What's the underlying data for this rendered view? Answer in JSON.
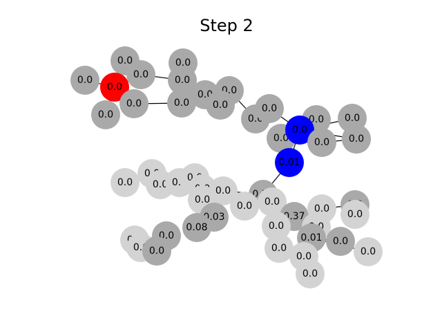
{
  "figure": {
    "title": "Step 2"
  },
  "graph": {
    "colors": {
      "dark": "#a9a9a9",
      "light": "#d3d3d3",
      "red": "#ff0000",
      "blue": "#0000ff"
    },
    "nodes": [
      {
        "id": "n1",
        "label": "0.0",
        "color": "dark"
      },
      {
        "id": "n2",
        "label": "0.0",
        "color": "dark"
      },
      {
        "id": "n3",
        "label": "0.0",
        "color": "red"
      },
      {
        "id": "n4",
        "label": "0.0",
        "color": "dark"
      },
      {
        "id": "n5",
        "label": "0.0",
        "color": "dark"
      },
      {
        "id": "n6",
        "label": "0.0",
        "color": "dark"
      },
      {
        "id": "n7",
        "label": "0.0",
        "color": "dark"
      },
      {
        "id": "n8",
        "label": "0.0",
        "color": "dark"
      },
      {
        "id": "n9",
        "label": "0.0",
        "color": "dark"
      },
      {
        "id": "n10",
        "label": "0.0",
        "color": "dark"
      },
      {
        "id": "n11",
        "label": "0.0",
        "color": "dark"
      },
      {
        "id": "n12",
        "label": "0.0",
        "color": "dark"
      },
      {
        "id": "n13",
        "label": "0.0",
        "color": "dark"
      },
      {
        "id": "n14",
        "label": "0.0",
        "color": "dark"
      },
      {
        "id": "n15",
        "label": "0.0",
        "color": "dark"
      },
      {
        "id": "n16",
        "label": "0.0",
        "color": "dark"
      },
      {
        "id": "n17",
        "label": "0.0",
        "color": "dark"
      },
      {
        "id": "n18",
        "label": "0.0",
        "color": "blue"
      },
      {
        "id": "n19",
        "label": "0.0",
        "color": "dark"
      },
      {
        "id": "n20",
        "label": "0.0",
        "color": "dark"
      },
      {
        "id": "n21",
        "label": "0.0",
        "color": "dark"
      },
      {
        "id": "n22",
        "label": "0.01",
        "color": "blue"
      },
      {
        "id": "n23",
        "label": "0.0",
        "color": "light"
      },
      {
        "id": "n24",
        "label": "0.0",
        "color": "light"
      },
      {
        "id": "n25",
        "label": "0.0",
        "color": "light"
      },
      {
        "id": "n26",
        "label": "0.0",
        "color": "light"
      },
      {
        "id": "n27",
        "label": "0.0",
        "color": "light"
      },
      {
        "id": "n28",
        "label": "0.0",
        "color": "light"
      },
      {
        "id": "n29",
        "label": "0.0",
        "color": "light"
      },
      {
        "id": "n30",
        "label": "0.0",
        "color": "light"
      },
      {
        "id": "n31",
        "label": "0.37",
        "color": "dark"
      },
      {
        "id": "n32",
        "label": "0.0",
        "color": "light"
      },
      {
        "id": "n33",
        "label": "0.0",
        "color": "light"
      },
      {
        "id": "n34",
        "label": "0.37",
        "color": "dark"
      },
      {
        "id": "n35",
        "label": "0.0",
        "color": "light"
      },
      {
        "id": "n36",
        "label": "0.0",
        "color": "light"
      },
      {
        "id": "n37",
        "label": "0.0",
        "color": "light"
      },
      {
        "id": "n38",
        "label": "0.0",
        "color": "light"
      },
      {
        "id": "n39",
        "label": "0.01",
        "color": "dark"
      },
      {
        "id": "n40",
        "label": "0.0",
        "color": "dark"
      },
      {
        "id": "n41",
        "label": "0.0",
        "color": "light"
      },
      {
        "id": "n42",
        "label": "0.0",
        "color": "light"
      },
      {
        "id": "n43",
        "label": "0.0",
        "color": "light"
      },
      {
        "id": "n44",
        "label": "0.0",
        "color": "dark"
      },
      {
        "id": "n45",
        "label": "0.0",
        "color": "light"
      },
      {
        "id": "n46",
        "label": "0.03",
        "color": "dark"
      },
      {
        "id": "n47",
        "label": "0.08",
        "color": "dark"
      },
      {
        "id": "n48",
        "label": "0.0",
        "color": "dark"
      },
      {
        "id": "n49",
        "label": "0.0",
        "color": "light"
      },
      {
        "id": "n50",
        "label": "0.0",
        "color": "light"
      },
      {
        "id": "n51",
        "label": "0.0",
        "color": "dark"
      }
    ],
    "edges": [
      [
        "n3",
        "n1"
      ],
      [
        "n3",
        "n2"
      ],
      [
        "n3",
        "n4"
      ],
      [
        "n3",
        "n5"
      ],
      [
        "n3",
        "n6"
      ],
      [
        "n4",
        "n8"
      ],
      [
        "n6",
        "n9"
      ],
      [
        "n7",
        "n8"
      ],
      [
        "n9",
        "n10"
      ],
      [
        "n10",
        "n11"
      ],
      [
        "n11",
        "n12"
      ],
      [
        "n11",
        "n13"
      ],
      [
        "n13",
        "n14"
      ],
      [
        "n14",
        "n18"
      ],
      [
        "n15",
        "n18"
      ],
      [
        "n16",
        "n18"
      ],
      [
        "n17",
        "n18"
      ],
      [
        "n18",
        "n19"
      ],
      [
        "n18",
        "n20"
      ],
      [
        "n20",
        "n21"
      ],
      [
        "n18",
        "n22"
      ],
      [
        "n22",
        "n31"
      ],
      [
        "n31",
        "n32"
      ],
      [
        "n31",
        "n34"
      ],
      [
        "n31",
        "n30"
      ],
      [
        "n30",
        "n29"
      ],
      [
        "n29",
        "n28"
      ],
      [
        "n29",
        "n46"
      ],
      [
        "n30",
        "n33"
      ],
      [
        "n34",
        "n35"
      ],
      [
        "n34",
        "n36"
      ],
      [
        "n34",
        "n37"
      ],
      [
        "n36",
        "n38"
      ],
      [
        "n37",
        "n39"
      ],
      [
        "n39",
        "n40"
      ],
      [
        "n39",
        "n41"
      ],
      [
        "n39",
        "n42"
      ],
      [
        "n39",
        "n43"
      ],
      [
        "n35",
        "n44"
      ],
      [
        "n44",
        "n45"
      ],
      [
        "n23",
        "n24"
      ],
      [
        "n24",
        "n25"
      ],
      [
        "n25",
        "n26"
      ],
      [
        "n26",
        "n27"
      ],
      [
        "n27",
        "n28"
      ],
      [
        "n46",
        "n47"
      ],
      [
        "n48",
        "n49"
      ],
      [
        "n49",
        "n50"
      ],
      [
        "n50",
        "n51"
      ]
    ]
  }
}
